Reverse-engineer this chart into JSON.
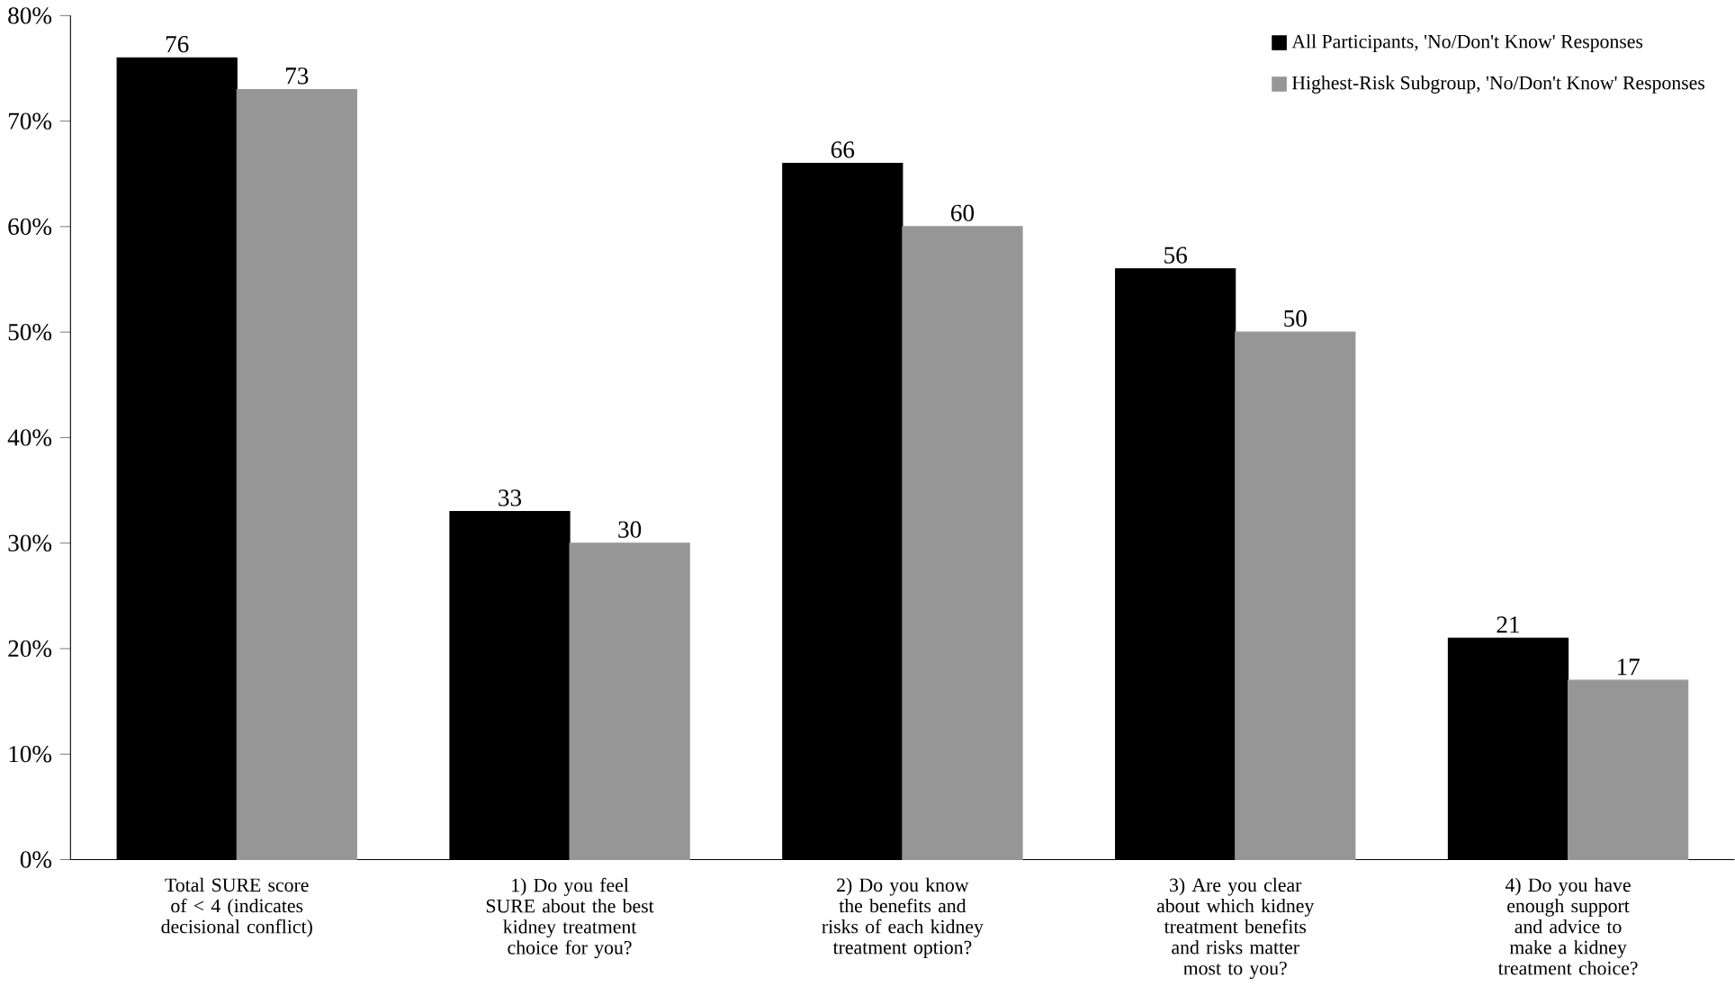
{
  "chart_data": {
    "type": "bar",
    "categories": [
      "Total SURE score of < 4 (indicates decisional conflict)",
      "1) Do you feel SURE about the best kidney treatment choice for you?",
      "2) Do you know the benefits and risks of each kidney treatment option?",
      "3) Are you clear about which kidney treatment benefits and risks matter most to you?",
      "4) Do you have enough support and advice to make a kidney treatment choice?"
    ],
    "series": [
      {
        "name": "All Participants, 'No/Don't Know'  Responses",
        "color": "#000000",
        "values": [
          76,
          33,
          66,
          56,
          21
        ]
      },
      {
        "name": "Highest-Risk Subgroup, 'No/Don't Know' Responses",
        "color": "#969696",
        "values": [
          73,
          30,
          60,
          50,
          17
        ]
      }
    ],
    "ylim": [
      0,
      80
    ],
    "yticks": [
      {
        "value": 0,
        "label": "0%"
      },
      {
        "value": 10,
        "label": "10%"
      },
      {
        "value": 20,
        "label": "20%"
      },
      {
        "value": 30,
        "label": "30%"
      },
      {
        "value": 40,
        "label": "40%"
      },
      {
        "value": 50,
        "label": "50%"
      },
      {
        "value": 60,
        "label": "60%"
      },
      {
        "value": 70,
        "label": "70%"
      },
      {
        "value": 80,
        "label": "80%"
      }
    ],
    "grid": false,
    "legend": "top right",
    "data_labels": true
  }
}
